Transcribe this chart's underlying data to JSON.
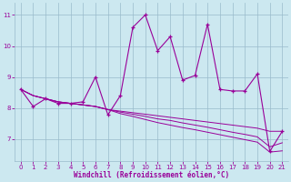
{
  "xlabel": "Windchill (Refroidissement éolien,°C)",
  "x_data": [
    0,
    1,
    2,
    3,
    4,
    5,
    6,
    7,
    8,
    9,
    10,
    11,
    12,
    13,
    14,
    15,
    16,
    17,
    18,
    19,
    20,
    21
  ],
  "main_line": [
    8.6,
    8.05,
    8.3,
    8.15,
    8.15,
    8.2,
    9.0,
    7.78,
    8.4,
    10.6,
    11.0,
    9.85,
    10.3,
    8.9,
    9.05,
    10.7,
    8.6,
    8.55,
    8.55,
    9.1,
    6.6,
    7.25
  ],
  "trend_line1": [
    8.6,
    8.4,
    8.3,
    8.2,
    8.15,
    8.1,
    8.05,
    7.95,
    7.9,
    7.85,
    7.8,
    7.75,
    7.7,
    7.65,
    7.6,
    7.55,
    7.5,
    7.45,
    7.4,
    7.35,
    7.25,
    7.25
  ],
  "trend_line2": [
    8.6,
    8.4,
    8.3,
    8.2,
    8.15,
    8.1,
    8.05,
    7.95,
    7.87,
    7.8,
    7.73,
    7.65,
    7.6,
    7.52,
    7.45,
    7.38,
    7.3,
    7.22,
    7.15,
    7.07,
    6.75,
    6.88
  ],
  "trend_line3": [
    8.6,
    8.4,
    8.3,
    8.2,
    8.15,
    8.1,
    8.05,
    7.95,
    7.82,
    7.73,
    7.63,
    7.53,
    7.45,
    7.37,
    7.3,
    7.22,
    7.14,
    7.06,
    6.98,
    6.9,
    6.58,
    6.62
  ],
  "line_color": "#990099",
  "bg_color": "#cce8f0",
  "grid_color": "#99bbcc",
  "ylim": [
    6.3,
    11.4
  ],
  "yticks": [
    7,
    8,
    9,
    10,
    11
  ],
  "xticks": [
    0,
    1,
    2,
    3,
    4,
    5,
    6,
    7,
    8,
    9,
    10,
    11,
    12,
    13,
    14,
    15,
    16,
    17,
    18,
    19,
    20,
    21
  ]
}
